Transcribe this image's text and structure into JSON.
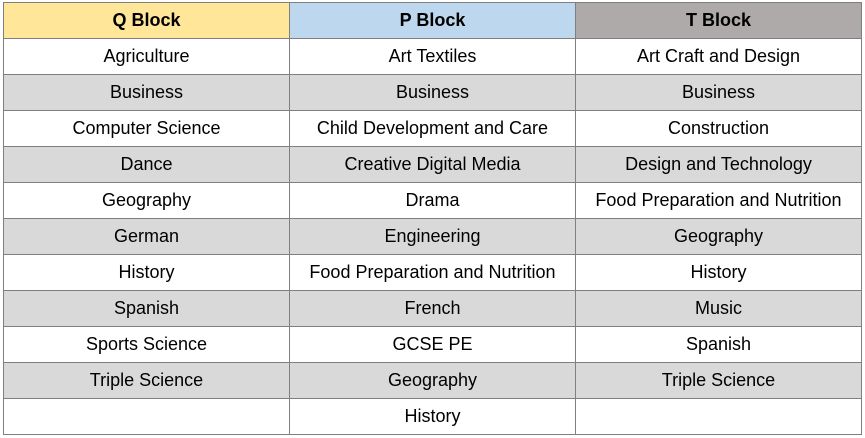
{
  "headers": {
    "q": "Q Block",
    "p": "P Block",
    "t": "T Block"
  },
  "colors": {
    "q_header": "#ffe699",
    "p_header": "#bdd7ee",
    "t_header": "#aeaaaa",
    "stripe": "#d9d9d9",
    "border": "#7f7f7f"
  },
  "rows": [
    {
      "q": "Agriculture",
      "p": "Art Textiles",
      "t": "Art Craft and Design"
    },
    {
      "q": "Business",
      "p": "Business",
      "t": "Business"
    },
    {
      "q": "Computer Science",
      "p": "Child Development and Care",
      "t": "Construction"
    },
    {
      "q": "Dance",
      "p": "Creative Digital Media",
      "t": "Design and Technology"
    },
    {
      "q": "Geography",
      "p": "Drama",
      "t": "Food Preparation and Nutrition"
    },
    {
      "q": "German",
      "p": "Engineering",
      "t": "Geography"
    },
    {
      "q": "History",
      "p": "Food Preparation and Nutrition",
      "t": "History"
    },
    {
      "q": "Spanish",
      "p": "French",
      "t": "Music"
    },
    {
      "q": "Sports Science",
      "p": "GCSE PE",
      "t": "Spanish"
    },
    {
      "q": "Triple Science",
      "p": "Geography",
      "t": "Triple Science"
    },
    {
      "q": "",
      "p": "History",
      "t": ""
    }
  ]
}
